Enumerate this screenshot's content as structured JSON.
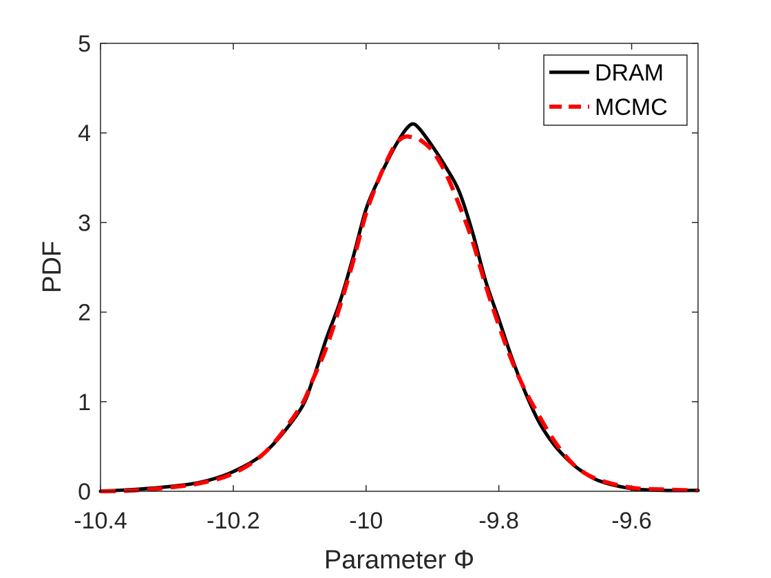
{
  "chart_data": {
    "type": "line",
    "title": "",
    "xlabel": "Parameter Φ",
    "ylabel": "PDF",
    "xlim": [
      -10.4,
      -9.5
    ],
    "ylim": [
      0,
      5
    ],
    "xticks": [
      -10.4,
      -10.2,
      -10.0,
      -9.8,
      -9.6
    ],
    "xtick_labels": [
      "-10.4",
      "-10.2",
      "-10",
      "-9.8",
      "-9.6"
    ],
    "yticks": [
      0,
      1,
      2,
      3,
      4,
      5
    ],
    "ytick_labels": [
      "0",
      "1",
      "2",
      "3",
      "4",
      "5"
    ],
    "grid": false,
    "legend_position": "top-right",
    "series": [
      {
        "name": "DRAM",
        "color": "#000000",
        "style": "solid",
        "x": [
          -10.4,
          -10.35,
          -10.3,
          -10.25,
          -10.2,
          -10.15,
          -10.1,
          -10.08,
          -10.06,
          -10.04,
          -10.02,
          -10.0,
          -9.98,
          -9.96,
          -9.95,
          -9.94,
          -9.93,
          -9.92,
          -9.9,
          -9.88,
          -9.86,
          -9.84,
          -9.82,
          -9.8,
          -9.78,
          -9.76,
          -9.74,
          -9.72,
          -9.7,
          -9.68,
          -9.65,
          -9.6,
          -9.55,
          -9.5
        ],
        "y": [
          0.0,
          0.02,
          0.05,
          0.1,
          0.22,
          0.45,
          0.9,
          1.25,
          1.7,
          2.1,
          2.6,
          3.15,
          3.5,
          3.8,
          3.93,
          4.04,
          4.1,
          4.05,
          3.85,
          3.62,
          3.35,
          2.9,
          2.35,
          1.92,
          1.48,
          1.1,
          0.78,
          0.55,
          0.38,
          0.25,
          0.12,
          0.03,
          0.01,
          0.01
        ]
      },
      {
        "name": "MCMC",
        "color": "#ff0000",
        "style": "dashed",
        "x": [
          -10.4,
          -10.35,
          -10.3,
          -10.25,
          -10.2,
          -10.15,
          -10.1,
          -10.08,
          -10.06,
          -10.04,
          -10.02,
          -10.0,
          -9.98,
          -9.96,
          -9.95,
          -9.94,
          -9.93,
          -9.92,
          -9.9,
          -9.88,
          -9.86,
          -9.84,
          -9.82,
          -9.8,
          -9.78,
          -9.76,
          -9.74,
          -9.72,
          -9.7,
          -9.68,
          -9.65,
          -9.6,
          -9.55,
          -9.5
        ],
        "y": [
          0.0,
          0.01,
          0.04,
          0.09,
          0.2,
          0.45,
          0.93,
          1.25,
          1.6,
          2.05,
          2.55,
          3.1,
          3.5,
          3.82,
          3.92,
          3.96,
          3.95,
          3.93,
          3.8,
          3.55,
          3.2,
          2.8,
          2.3,
          1.85,
          1.45,
          1.12,
          0.85,
          0.6,
          0.4,
          0.25,
          0.13,
          0.04,
          0.02,
          0.01
        ]
      }
    ]
  }
}
